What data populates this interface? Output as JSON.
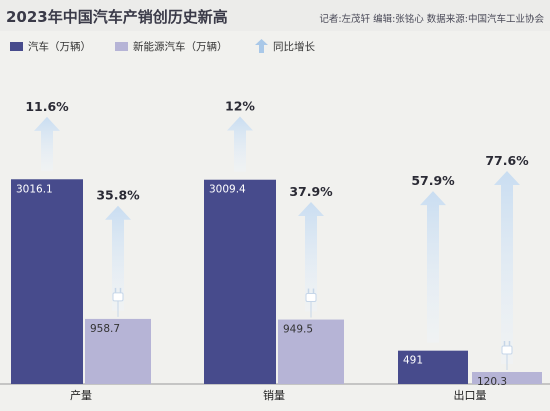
{
  "header": {
    "title": "2023年中国汽车产销创历史新高",
    "credits": "记者:左茂轩   编辑:张铭心   数据来源:中国汽车工业协会"
  },
  "legend": {
    "car": "汽车（万辆）",
    "nev": "新能源汽车（万辆）",
    "growth": "同比增长"
  },
  "colors": {
    "car": "#474b8c",
    "nev": "#b6b4d6",
    "arrow": "#c5daf0",
    "background": "#f1f1ee"
  },
  "chart_data": {
    "type": "bar",
    "title": "2023年中国汽车产销创历史新高",
    "categories": [
      "产量",
      "销量",
      "出口量"
    ],
    "series": [
      {
        "name": "汽车（万辆）",
        "values": [
          3016.1,
          3009.4,
          491
        ],
        "value_labels": [
          "3016.1",
          "3009.4",
          "491"
        ],
        "growth_labels": [
          "11.6%",
          "12%",
          "57.9%"
        ],
        "growth": [
          11.6,
          12,
          57.9
        ]
      },
      {
        "name": "新能源汽车（万辆）",
        "values": [
          958.7,
          949.5,
          120.3
        ],
        "value_labels": [
          "958.7",
          "949.5",
          "120.3"
        ],
        "growth_labels": [
          "35.8%",
          "37.9%",
          "77.6%"
        ],
        "growth": [
          35.8,
          37.9,
          77.6
        ]
      }
    ],
    "ylim": [
      0,
      3300
    ]
  }
}
